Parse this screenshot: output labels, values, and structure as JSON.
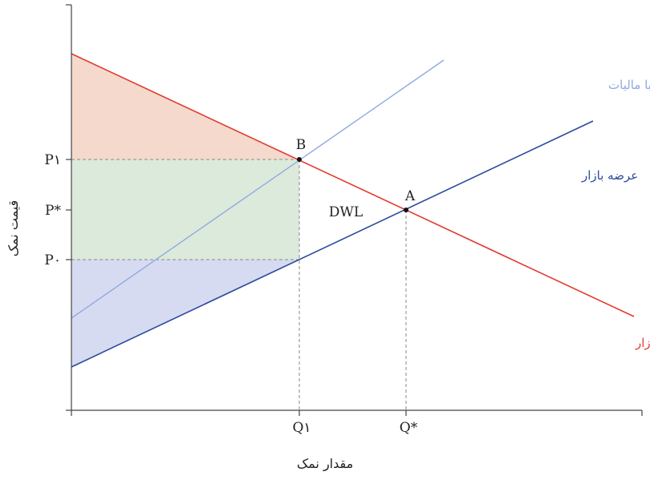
{
  "axes": {
    "x_title": "مقدار نمک",
    "y_title": "قیمت نمک"
  },
  "price_labels": {
    "p1": "P۱",
    "p_star": "P*",
    "p0": "P۰"
  },
  "quantity_labels": {
    "q1": "Q۱",
    "q_star": "Q*"
  },
  "points": {
    "a": "A",
    "b": "B"
  },
  "area_labels": {
    "dwl": "DWL"
  },
  "curves": {
    "demand": {
      "label": "تقاضای بازار",
      "color": "#e23b2e"
    },
    "supply": {
      "label": "عرضه بازار",
      "color": "#2c4a9e"
    },
    "supply_tax": {
      "label": "عرضه بازار همراه با مالیات",
      "color": "#92a9df"
    }
  },
  "fills": {
    "consumer_surplus": "#f4d9cc",
    "tax_revenue": "#dbeadb",
    "producer_surplus": "#d7dbf1"
  }
}
